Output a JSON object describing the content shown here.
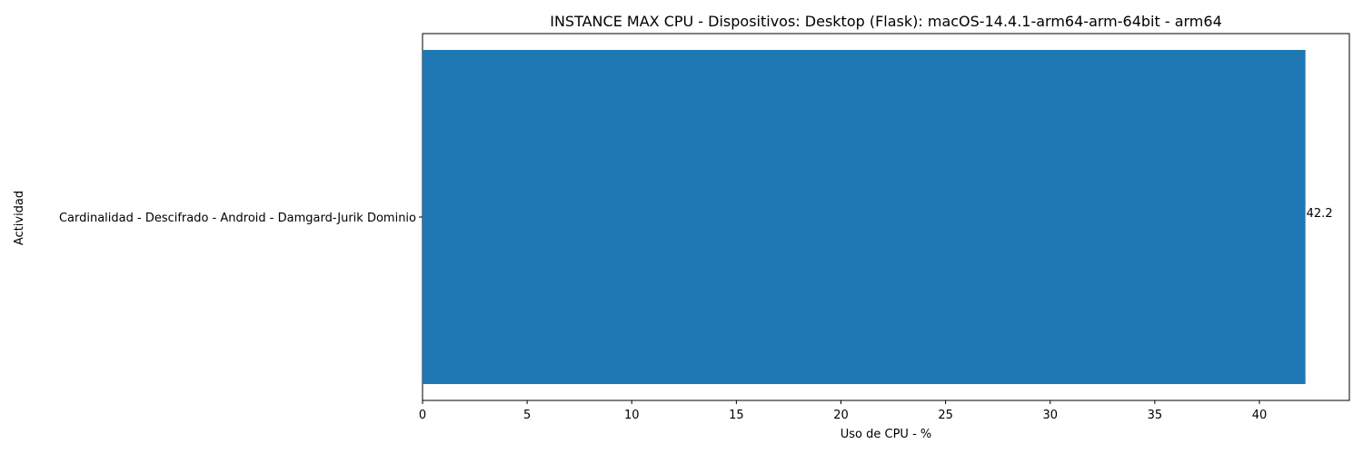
{
  "chart_data": {
    "type": "bar",
    "orientation": "horizontal",
    "title": "INSTANCE MAX CPU - Dispositivos: Desktop (Flask): macOS-14.4.1-arm64-arm-64bit - arm64",
    "xlabel": "Uso de CPU - %",
    "ylabel": "Actividad",
    "categories": [
      "Cardinalidad - Descifrado - Android - Damgard-Jurik Dominio"
    ],
    "values": [
      42.2
    ],
    "value_labels": [
      "42.2"
    ],
    "xlim": [
      0,
      44.3
    ],
    "xticks": [
      0,
      5,
      10,
      15,
      20,
      25,
      30,
      35,
      40
    ],
    "xtick_labels": [
      "0",
      "5",
      "10",
      "15",
      "20",
      "25",
      "30",
      "35",
      "40"
    ],
    "grid": false,
    "legend": "none",
    "bar_color": "#1f77b4"
  }
}
